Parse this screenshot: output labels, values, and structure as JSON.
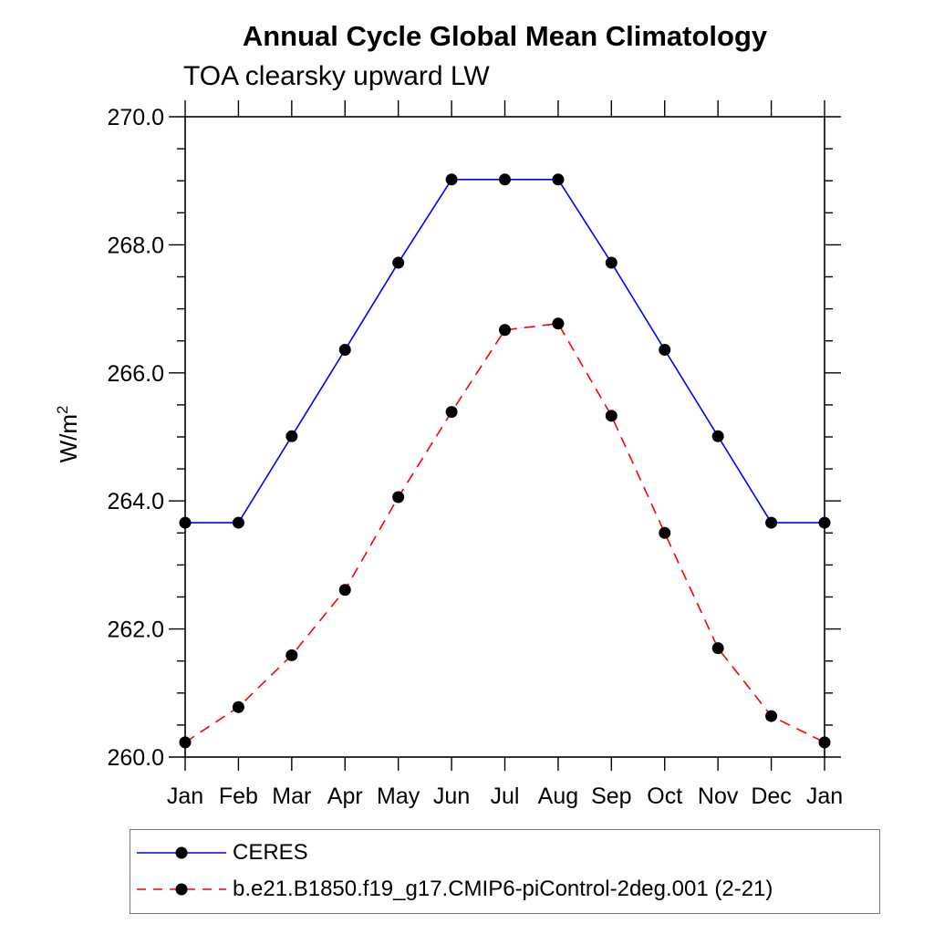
{
  "chart_data": {
    "type": "line",
    "title": "Annual Cycle Global Mean Climatology",
    "subtitle": "TOA clearsky upward LW",
    "ylabel": "W/m²",
    "ylabel_parts": {
      "base": "W/m",
      "sup": "2"
    },
    "categories": [
      "Jan",
      "Feb",
      "Mar",
      "Apr",
      "May",
      "Jun",
      "Jul",
      "Aug",
      "Sep",
      "Oct",
      "Nov",
      "Dec",
      "Jan"
    ],
    "ylim": [
      260.0,
      270.0
    ],
    "y_tick_labels": [
      "260.0",
      "262.0",
      "264.0",
      "266.0",
      "268.0",
      "270.0"
    ],
    "y_minor_step": 0.5,
    "grid": false,
    "legend_position": "bottom-left",
    "axis_color": "#000000",
    "marker_color": "#000000",
    "series": [
      {
        "name": "CERES",
        "color": "#0000ff",
        "line_style": "solid",
        "marker": "filled-black-circle",
        "values": [
          263.66,
          263.66,
          265.01,
          266.36,
          267.72,
          269.02,
          269.02,
          269.02,
          267.72,
          266.36,
          265.01,
          263.66,
          263.66
        ]
      },
      {
        "name": "b.e21.B1850.f19_g17.CMIP6-piControl-2deg.001 (2-21)",
        "color": "#ff0000",
        "line_style": "dashed",
        "marker": "filled-black-circle",
        "values": [
          260.23,
          260.78,
          261.59,
          262.61,
          264.06,
          265.39,
          266.67,
          266.77,
          265.33,
          263.5,
          261.7,
          260.64,
          260.23
        ]
      }
    ]
  }
}
